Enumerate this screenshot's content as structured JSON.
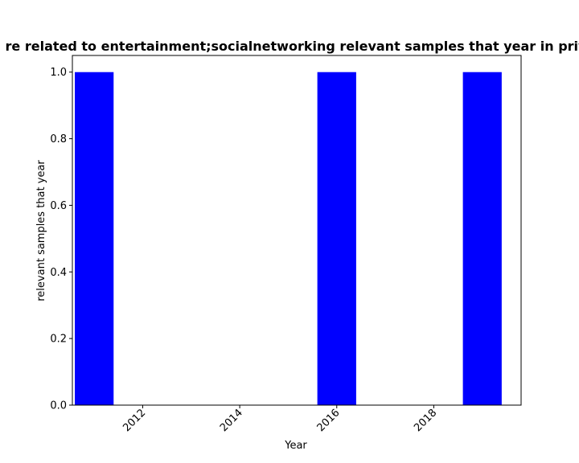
{
  "chart_data": {
    "type": "bar",
    "title": "re related to entertainment;socialnetwork­ing relevant samples that year in priv",
    "xlabel": "Year",
    "ylabel": "relevant samples that year",
    "x": [
      2011,
      2016,
      2019
    ],
    "values": [
      1.0,
      1.0,
      1.0
    ],
    "bar_width_years": 0.8,
    "xlim": [
      2010.55,
      2019.8
    ],
    "ylim": [
      0,
      1.05
    ],
    "xticks": [
      2012,
      2014,
      2016,
      2018
    ],
    "xtick_labels": [
      "2012",
      "2014",
      "2016",
      "2018"
    ],
    "yticks": [
      0.0,
      0.2,
      0.4,
      0.6,
      0.8,
      1.0
    ],
    "ytick_labels": [
      "0.0",
      "0.2",
      "0.4",
      "0.6",
      "0.8",
      "1.0"
    ],
    "bar_color": "#0000ff",
    "grid": false,
    "legend": "none"
  }
}
